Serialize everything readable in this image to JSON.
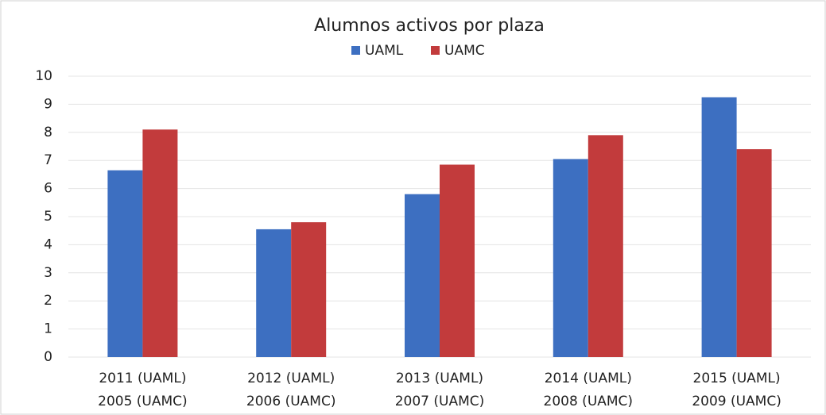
{
  "chart_data": {
    "type": "bar",
    "title": "Alumnos activos por plaza",
    "categories": [
      [
        "2011 (UAML)",
        "2005 (UAMC)"
      ],
      [
        "2012 (UAML)",
        "2006 (UAMC)"
      ],
      [
        "2013 (UAML)",
        "2007 (UAMC)"
      ],
      [
        "2014 (UAML)",
        "2008 (UAMC)"
      ],
      [
        "2015 (UAML)",
        "2009 (UAMC)"
      ]
    ],
    "series": [
      {
        "name": "UAML",
        "color": "#3d6fc1",
        "values": [
          6.65,
          4.55,
          5.8,
          7.05,
          9.25
        ]
      },
      {
        "name": "UAMC",
        "color": "#c23b3c",
        "values": [
          8.1,
          4.8,
          6.85,
          7.9,
          7.4
        ]
      }
    ],
    "ylim": [
      0,
      10
    ],
    "yticks": [
      0,
      1,
      2,
      3,
      4,
      5,
      6,
      7,
      8,
      9,
      10
    ],
    "grid": true,
    "legend": "top"
  }
}
